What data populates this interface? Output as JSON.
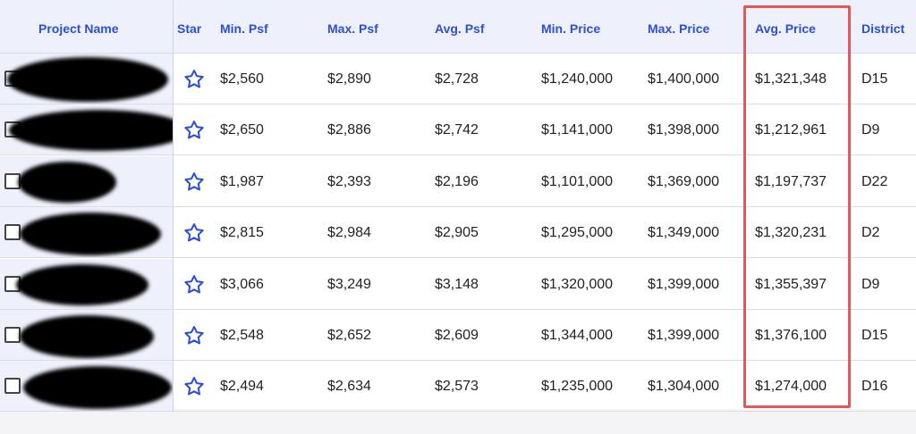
{
  "table": {
    "columns": [
      {
        "key": "name",
        "label": "Project Name"
      },
      {
        "key": "star",
        "label": "Star"
      },
      {
        "key": "min_psf",
        "label": "Min. Psf"
      },
      {
        "key": "max_psf",
        "label": "Max. Psf"
      },
      {
        "key": "avg_psf",
        "label": "Avg. Psf"
      },
      {
        "key": "min_price",
        "label": "Min. Price"
      },
      {
        "key": "max_price",
        "label": "Max. Price"
      },
      {
        "key": "avg_price",
        "label": "Avg. Price"
      },
      {
        "key": "district",
        "label": "District"
      }
    ],
    "rows": [
      {
        "min_psf": "$2,560",
        "max_psf": "$2,890",
        "avg_psf": "$2,728",
        "min_price": "$1,240,000",
        "max_price": "$1,400,000",
        "avg_price": "$1,321,348",
        "district": "D15"
      },
      {
        "min_psf": "$2,650",
        "max_psf": "$2,886",
        "avg_psf": "$2,742",
        "min_price": "$1,141,000",
        "max_price": "$1,398,000",
        "avg_price": "$1,212,961",
        "district": "D9"
      },
      {
        "min_psf": "$1,987",
        "max_psf": "$2,393",
        "avg_psf": "$2,196",
        "min_price": "$1,101,000",
        "max_price": "$1,369,000",
        "avg_price": "$1,197,737",
        "district": "D22"
      },
      {
        "min_psf": "$2,815",
        "max_psf": "$2,984",
        "avg_psf": "$2,905",
        "min_price": "$1,295,000",
        "max_price": "$1,349,000",
        "avg_price": "$1,320,231",
        "district": "D2"
      },
      {
        "min_psf": "$3,066",
        "max_psf": "$3,249",
        "avg_psf": "$3,148",
        "min_price": "$1,320,000",
        "max_price": "$1,399,000",
        "avg_price": "$1,355,397",
        "district": "D9"
      },
      {
        "min_psf": "$2,548",
        "max_psf": "$2,652",
        "avg_psf": "$2,609",
        "min_price": "$1,344,000",
        "max_price": "$1,399,000",
        "avg_price": "$1,376,100",
        "district": "D15"
      },
      {
        "min_psf": "$2,494",
        "max_psf": "$2,634",
        "avg_psf": "$2,573",
        "min_price": "$1,235,000",
        "max_price": "$1,304,000",
        "avg_price": "$1,274,000",
        "district": "D16"
      }
    ]
  },
  "colors": {
    "header_text": "#2b4fd6",
    "header_bg": "#eef1fc",
    "star_outline": "#2b4fd6",
    "highlight_box": "#e25757"
  },
  "icons": {
    "star": "star-outline-icon",
    "checkbox": "checkbox-unchecked-icon"
  }
}
